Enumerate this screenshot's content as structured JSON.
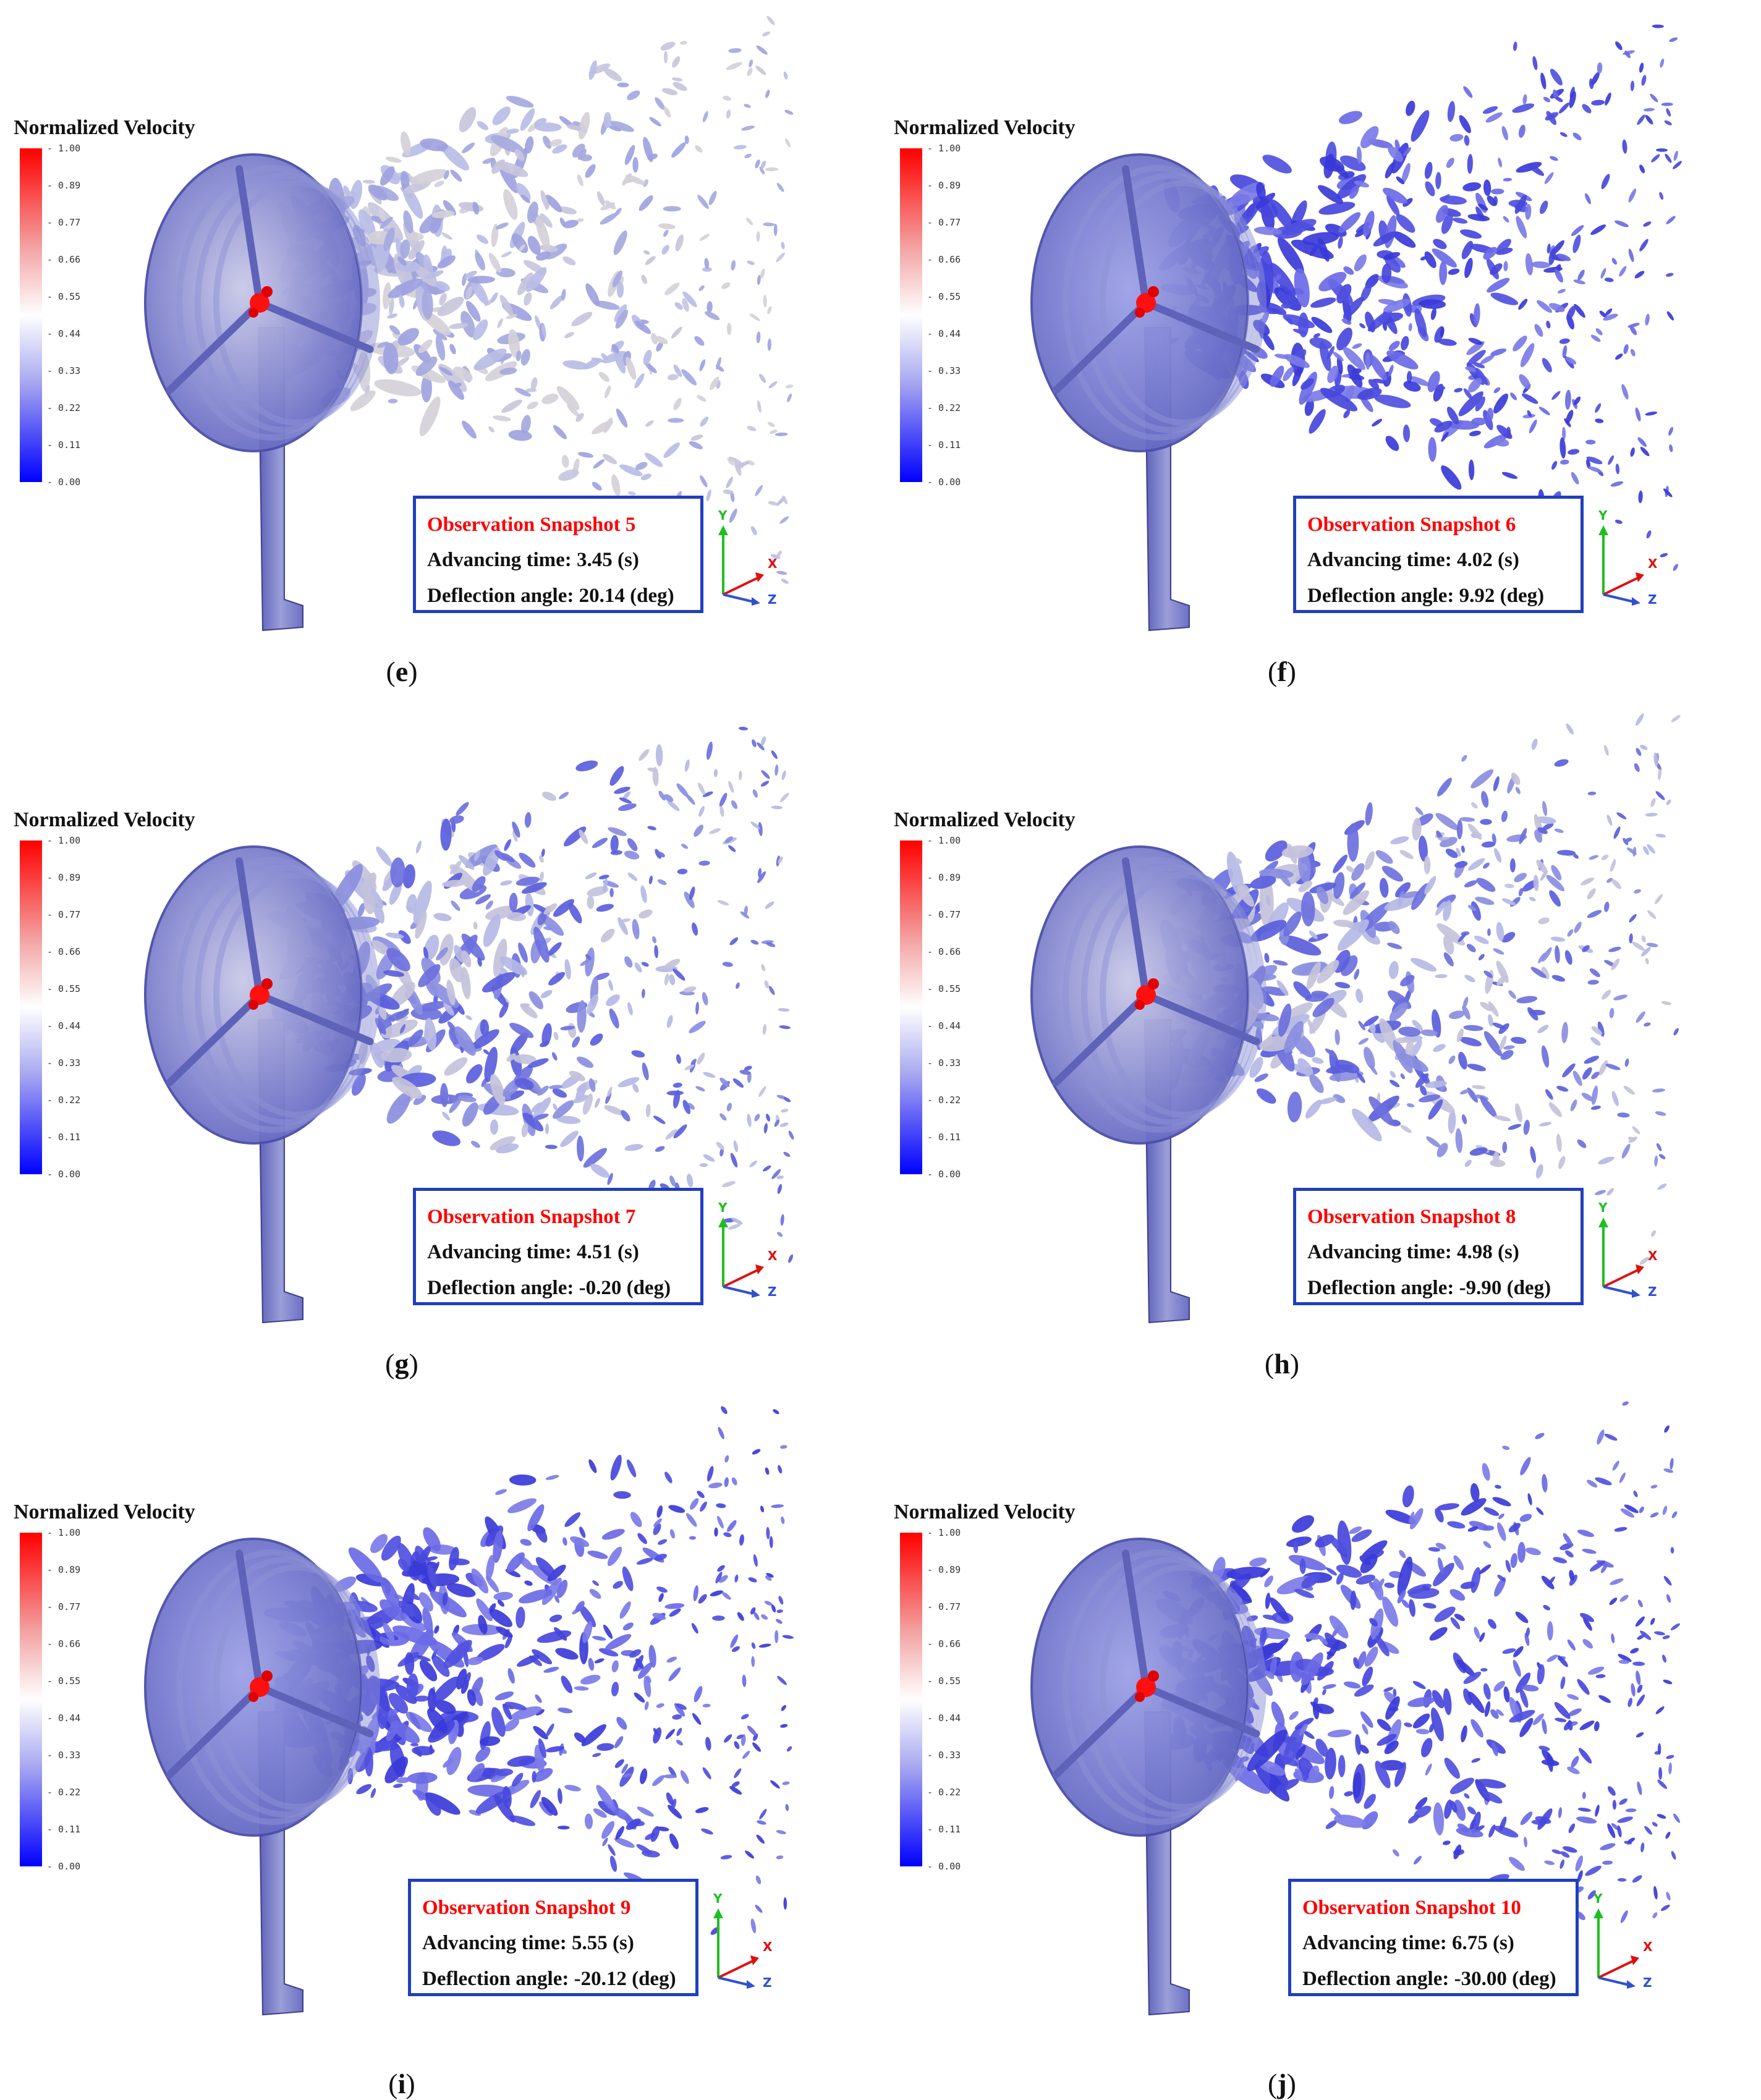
{
  "legend": {
    "title": "Normalized Velocity",
    "ticks": [
      "1.00",
      "0.89",
      "0.77",
      "0.66",
      "0.55",
      "0.44",
      "0.33",
      "0.22",
      "0.11",
      "0.00"
    ],
    "colors": [
      "#ff0000",
      "#ffffff",
      "#0000ff"
    ]
  },
  "axes": {
    "y": "Y",
    "x": "X",
    "z": "Z",
    "y_color": "#1fbf1f",
    "x_color": "#e01010",
    "z_color": "#3050d0"
  },
  "panels": [
    {
      "caption": "e",
      "snapshot": "Observation Snapshot 5",
      "time": "Advancing time: 3.45 (s)",
      "angle": "Deflection angle: 20.14 (deg)",
      "wake_tone": "light"
    },
    {
      "caption": "f",
      "snapshot": "Observation Snapshot 6",
      "time": "Advancing time: 4.02 (s)",
      "angle": "Deflection angle: 9.92 (deg)",
      "wake_tone": "blue"
    },
    {
      "caption": "g",
      "snapshot": "Observation Snapshot 7",
      "time": "Advancing time: 4.51 (s)",
      "angle": "Deflection angle: -0.20 (deg)",
      "wake_tone": "mixed"
    },
    {
      "caption": "h",
      "snapshot": "Observation Snapshot 8",
      "time": "Advancing time: 4.98 (s)",
      "angle": "Deflection angle: -9.90 (deg)",
      "wake_tone": "mixed"
    },
    {
      "caption": "i",
      "snapshot": "Observation Snapshot 9",
      "time": "Advancing time: 5.55 (s)",
      "angle": "Deflection angle: -20.12 (deg)",
      "wake_tone": "blue"
    },
    {
      "caption": "j",
      "snapshot": "Observation Snapshot 10",
      "time": "Advancing time: 6.75 (s)",
      "angle": "Deflection angle: -30.00 (deg)",
      "wake_tone": "blue"
    }
  ]
}
